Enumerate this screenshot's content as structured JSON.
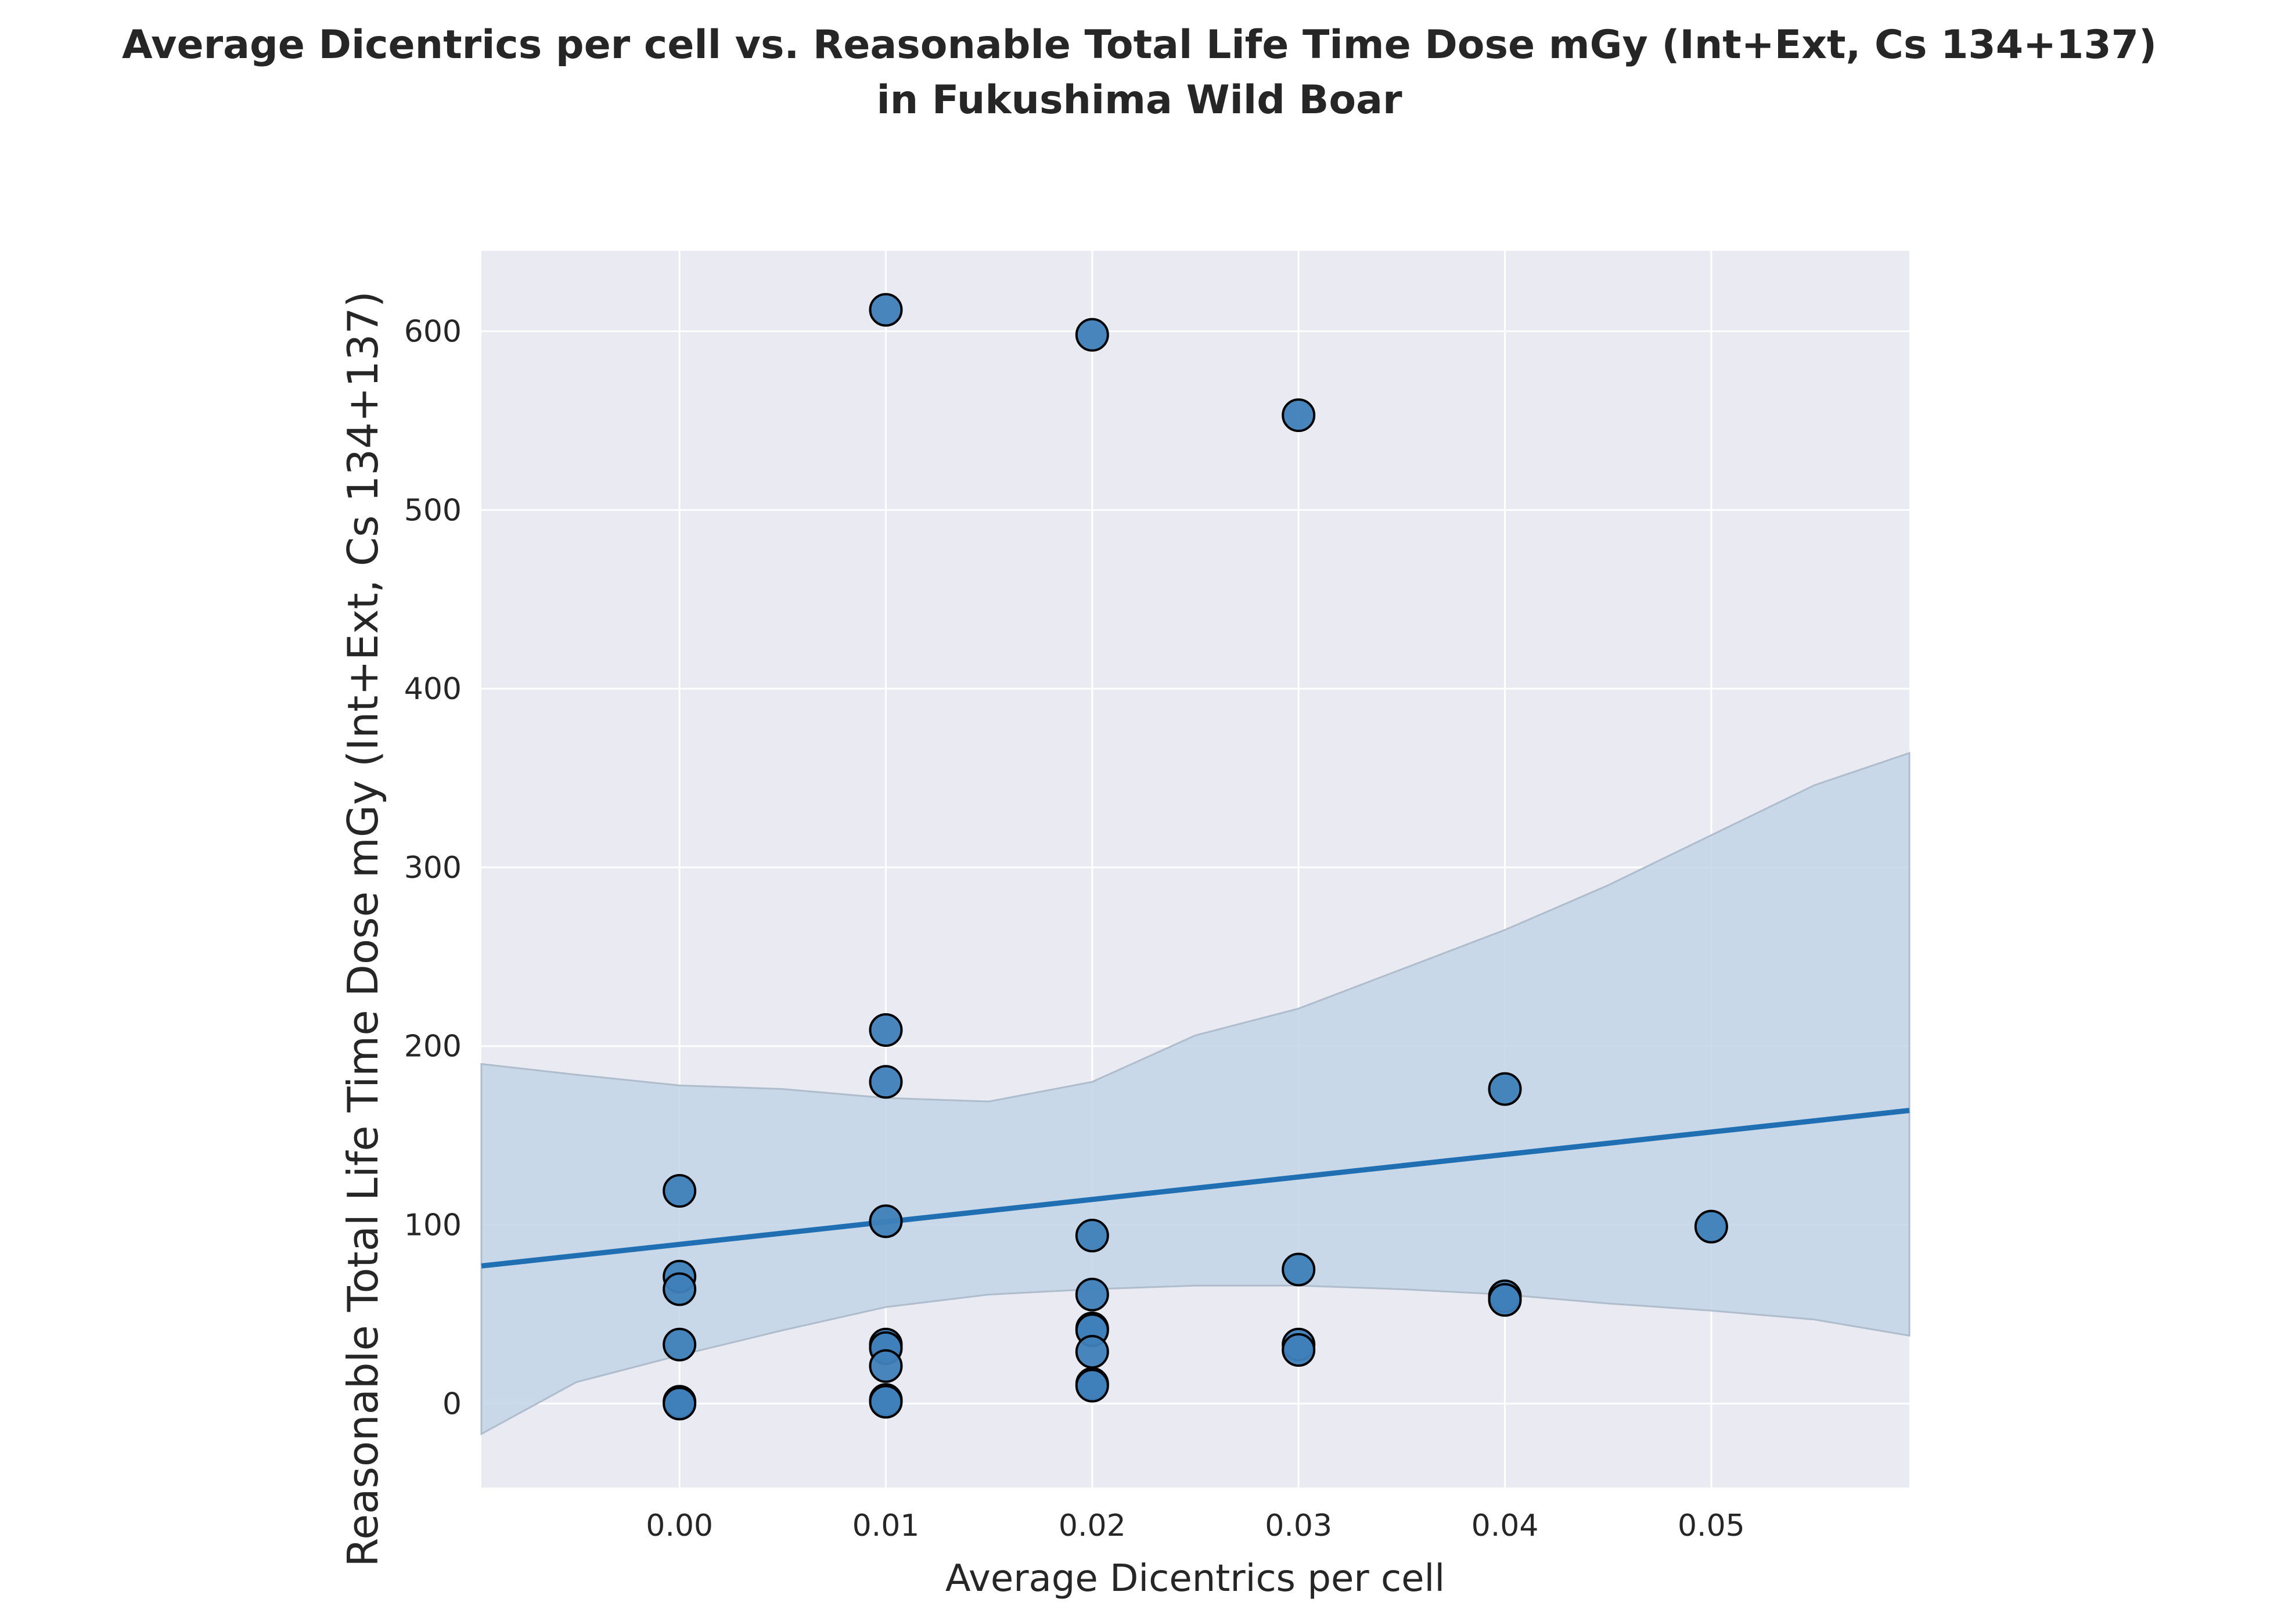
{
  "chart_data": {
    "type": "scatter",
    "title_lines": [
      "Average Dicentrics per cell vs. Reasonable Total Life Time Dose mGy (Int+Ext, Cs 134+137)",
      "in Fukushima Wild Boar"
    ],
    "xlabel": "Average Dicentrics per cell",
    "ylabel": "Reasonable Total Life Time Dose mGy (Int+Ext, Cs 134+137)",
    "xlim": [
      -0.0096,
      0.0596
    ],
    "ylim": [
      -47,
      645
    ],
    "xticks": [
      0.0,
      0.01,
      0.02,
      0.03,
      0.04,
      0.05
    ],
    "xtick_labels": [
      "0.00",
      "0.01",
      "0.02",
      "0.03",
      "0.04",
      "0.05"
    ],
    "yticks": [
      0,
      100,
      200,
      300,
      400,
      500,
      600
    ],
    "ytick_labels": [
      "0",
      "100",
      "200",
      "300",
      "400",
      "500",
      "600"
    ],
    "grid": true,
    "points": [
      {
        "x": 0.0,
        "y": 119
      },
      {
        "x": 0.0,
        "y": 71
      },
      {
        "x": 0.0,
        "y": 64
      },
      {
        "x": 0.0,
        "y": 33
      },
      {
        "x": 0.0,
        "y": 1
      },
      {
        "x": 0.0,
        "y": 0
      },
      {
        "x": 0.01,
        "y": 612
      },
      {
        "x": 0.01,
        "y": 209
      },
      {
        "x": 0.01,
        "y": 180
      },
      {
        "x": 0.01,
        "y": 102
      },
      {
        "x": 0.01,
        "y": 33
      },
      {
        "x": 0.01,
        "y": 31
      },
      {
        "x": 0.01,
        "y": 21
      },
      {
        "x": 0.01,
        "y": 2
      },
      {
        "x": 0.01,
        "y": 1
      },
      {
        "x": 0.02,
        "y": 598
      },
      {
        "x": 0.02,
        "y": 94
      },
      {
        "x": 0.02,
        "y": 61
      },
      {
        "x": 0.02,
        "y": 42
      },
      {
        "x": 0.02,
        "y": 41
      },
      {
        "x": 0.02,
        "y": 29
      },
      {
        "x": 0.02,
        "y": 11
      },
      {
        "x": 0.02,
        "y": 10
      },
      {
        "x": 0.03,
        "y": 553
      },
      {
        "x": 0.03,
        "y": 75
      },
      {
        "x": 0.03,
        "y": 33
      },
      {
        "x": 0.03,
        "y": 30
      },
      {
        "x": 0.04,
        "y": 176
      },
      {
        "x": 0.04,
        "y": 60
      },
      {
        "x": 0.04,
        "y": 58
      },
      {
        "x": 0.05,
        "y": 99
      }
    ],
    "regression": {
      "x": [
        -0.0096,
        0.0596
      ],
      "y": [
        77,
        164
      ]
    },
    "confidence_band": {
      "x": [
        -0.0096,
        -0.005,
        0.0,
        0.005,
        0.01,
        0.015,
        0.02,
        0.025,
        0.03,
        0.035,
        0.04,
        0.045,
        0.05,
        0.055,
        0.0596
      ],
      "upper": [
        190,
        184,
        178,
        176,
        171,
        169,
        180,
        206,
        221,
        243,
        265,
        290,
        318,
        346,
        364
      ],
      "lower": [
        -17,
        12,
        27,
        41,
        54,
        61,
        64,
        66,
        66,
        64,
        61,
        56,
        52,
        47,
        38
      ]
    },
    "colors": {
      "point_fill": "#3f7fb9",
      "point_edge": "#000000",
      "line": "#1f6fb2",
      "band": "#c3d5e8",
      "axes_bg": "#eaeaf2",
      "grid": "#ffffff"
    }
  }
}
